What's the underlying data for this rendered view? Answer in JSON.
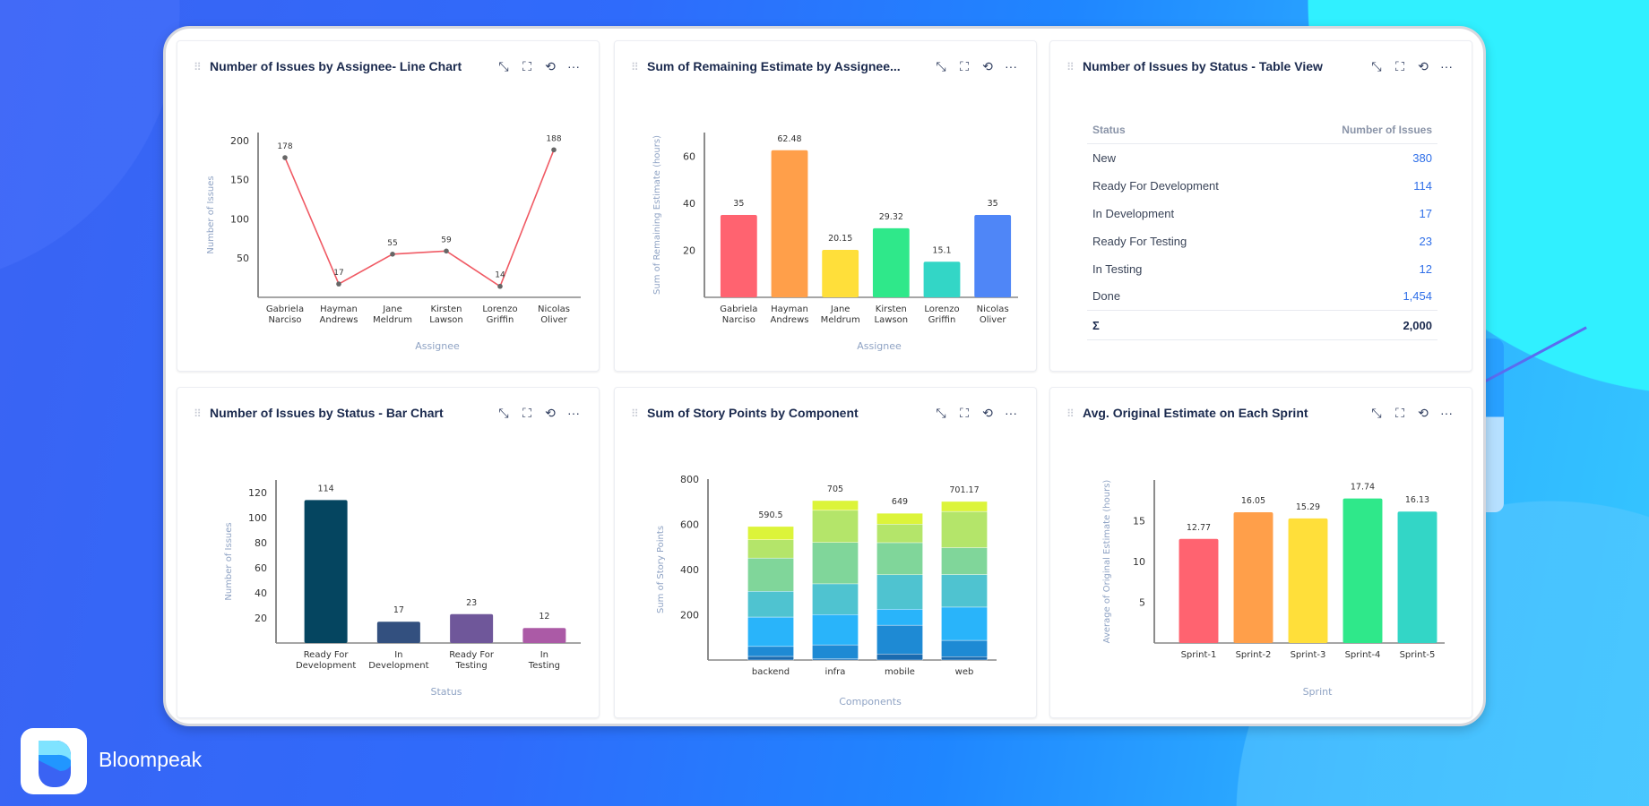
{
  "brand": {
    "name": "Bloompeak"
  },
  "colors": {
    "line": "#f05a64",
    "text_axis": "#8fa3c4"
  },
  "panels": [
    {
      "title": "Number of Issues by Assignee- Line Chart"
    },
    {
      "title": "Sum of Remaining Estimate by Assignee..."
    },
    {
      "title": "Number of Issues by Status - Table View"
    },
    {
      "title": "Number of Issues by Status - Bar Chart"
    },
    {
      "title": "Sum of Story Points by Component"
    },
    {
      "title": "Avg. Original Estimate on Each Sprint"
    }
  ],
  "panel_icons": [
    "shrink-icon",
    "fullscreen-icon",
    "refresh-icon",
    "more-icon"
  ],
  "table": {
    "headers": [
      "Status",
      "Number of Issues"
    ],
    "rows": [
      [
        "New",
        "380"
      ],
      [
        "Ready For Development",
        "114"
      ],
      [
        "In Development",
        "17"
      ],
      [
        "Ready For Testing",
        "23"
      ],
      [
        "In Testing",
        "12"
      ],
      [
        "Done",
        "1,454"
      ]
    ],
    "total_label": "Σ",
    "total": "2,000"
  },
  "chart_data": [
    {
      "type": "line",
      "xlabel": "Assignee",
      "ylabel": "Number of Issues",
      "ylim": [
        0,
        210
      ],
      "yticks": [
        50,
        100,
        150,
        200
      ],
      "categories": [
        "Gabriela Narciso",
        "Hayman Andrews",
        "Jane Meldrum",
        "Kirsten Lawson",
        "Lorenzo Griffin",
        "Nicolas Oliver"
      ],
      "values": [
        178,
        17,
        55,
        59,
        14,
        188
      ],
      "labels": [
        "178",
        "17",
        "55",
        "59",
        "14",
        "188"
      ],
      "color": "#f05a64"
    },
    {
      "type": "bar",
      "xlabel": "Assignee",
      "ylabel": "Sum of Remaining Estimate (hours)",
      "ylim": [
        0,
        70
      ],
      "yticks": [
        20,
        40,
        60
      ],
      "categories": [
        "Gabriela Narciso",
        "Hayman Andrews",
        "Jane Meldrum",
        "Kirsten Lawson",
        "Lorenzo Griffin",
        "Nicolas Oliver"
      ],
      "values": [
        35,
        62.48,
        20.15,
        29.32,
        15.1,
        35
      ],
      "labels": [
        "35",
        "62.48",
        "20.15",
        "29.32",
        "15.1",
        "35"
      ],
      "colors": [
        "#ff6370",
        "#ff9f4a",
        "#ffdf3a",
        "#2fe88a",
        "#33d6c6",
        "#4f86f7"
      ]
    },
    {
      "type": "table"
    },
    {
      "type": "bar",
      "xlabel": "Status",
      "ylabel": "Number of Issues",
      "ylim": [
        0,
        130
      ],
      "yticks": [
        20,
        40,
        60,
        80,
        100,
        120
      ],
      "categories": [
        "Ready For Development",
        "In Development",
        "Ready For Testing",
        "In Testing"
      ],
      "values": [
        114,
        17,
        23,
        12
      ],
      "labels": [
        "114",
        "17",
        "23",
        "12"
      ],
      "colors": [
        "#054560",
        "#33507f",
        "#6f579a",
        "#ab5aa6"
      ]
    },
    {
      "type": "stacked-bar",
      "xlabel": "Components",
      "ylabel": "Sum of Story Points",
      "ylim": [
        0,
        800
      ],
      "yticks": [
        200,
        400,
        600,
        800
      ],
      "categories": [
        "backend",
        "infra",
        "mobile",
        "web"
      ],
      "totals": [
        "590.5",
        "705",
        "649",
        "701.17"
      ],
      "stack_colors": [
        "#1a6bb0",
        "#1e8ad4",
        "#29b4fa",
        "#4fc3d0",
        "#80d69a",
        "#b4e56a",
        "#dcf43a"
      ],
      "series": [
        {
          "values": [
            16,
            5,
            27,
            15
          ]
        },
        {
          "values": [
            44,
            62,
            127,
            72
          ]
        },
        {
          "values": [
            130,
            134,
            71,
            147
          ]
        },
        {
          "values": [
            114,
            136,
            152,
            144
          ]
        },
        {
          "values": [
            147,
            183,
            142,
            119
          ]
        },
        {
          "values": [
            81,
            142,
            82,
            160
          ]
        },
        {
          "values": [
            58.5,
            43,
            48,
            44.17
          ]
        }
      ]
    },
    {
      "type": "bar",
      "xlabel": "Sprint",
      "ylabel": "Average of Original Estimate (hours)",
      "ylim": [
        0,
        20
      ],
      "yticks": [
        5,
        10,
        15
      ],
      "categories": [
        "Sprint-1",
        "Sprint-2",
        "Sprint-3",
        "Sprint-4",
        "Sprint-5"
      ],
      "values": [
        12.77,
        16.05,
        15.29,
        17.74,
        16.13
      ],
      "labels": [
        "12.77",
        "16.05",
        "15.29",
        "17.74",
        "16.13"
      ],
      "colors": [
        "#ff6370",
        "#ff9f4a",
        "#ffdf3a",
        "#2fe88a",
        "#33d6c6"
      ]
    }
  ]
}
